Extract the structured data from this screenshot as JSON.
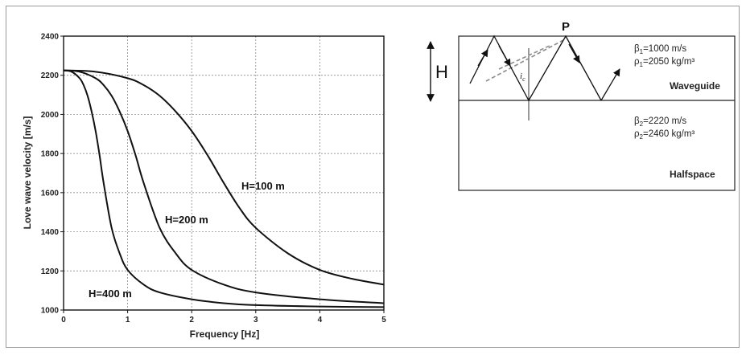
{
  "chart_data": {
    "type": "line",
    "xlabel": "Frequency [Hz]",
    "ylabel": "Love wave velocity [m/s]",
    "xlim": [
      0,
      5
    ],
    "ylim": [
      1000,
      2400
    ],
    "xticks": [
      0,
      1,
      2,
      3,
      4,
      5
    ],
    "yticks": [
      1000,
      1200,
      1400,
      1600,
      1800,
      2000,
      2200,
      2400
    ],
    "grid": true,
    "series": [
      {
        "name": "H=100 m",
        "x": [
          0,
          0.5,
          1.0,
          1.25,
          1.5,
          1.75,
          2.0,
          2.25,
          2.5,
          2.75,
          3.0,
          3.5,
          4.0,
          4.5,
          5.0
        ],
        "y": [
          2225,
          2218,
          2185,
          2150,
          2095,
          2015,
          1915,
          1790,
          1650,
          1520,
          1420,
          1290,
          1205,
          1160,
          1130
        ]
      },
      {
        "name": "H=200 m",
        "x": [
          0,
          0.25,
          0.5,
          0.625,
          0.75,
          0.875,
          1.0,
          1.125,
          1.25,
          1.5,
          1.75,
          2.0,
          2.5,
          3.0,
          4.0,
          5.0
        ],
        "y": [
          2225,
          2218,
          2185,
          2150,
          2095,
          2015,
          1915,
          1790,
          1650,
          1420,
          1290,
          1205,
          1130,
          1090,
          1055,
          1035
        ]
      },
      {
        "name": "H=400 m",
        "x": [
          0,
          0.125,
          0.25,
          0.3125,
          0.375,
          0.4375,
          0.5,
          0.5625,
          0.625,
          0.75,
          0.875,
          1.0,
          1.25,
          1.5,
          2.0,
          2.5,
          3.0,
          4.0,
          5.0
        ],
        "y": [
          2225,
          2218,
          2185,
          2150,
          2095,
          2015,
          1915,
          1790,
          1650,
          1420,
          1290,
          1205,
          1130,
          1090,
          1055,
          1035,
          1025,
          1018,
          1015
        ]
      }
    ]
  },
  "diagram": {
    "thickness_label": "H",
    "point_label": "P",
    "critical_angle_label": "i",
    "critical_angle_sub": "c",
    "waveguide": {
      "name": "Waveguide",
      "beta_symbol": "β",
      "beta_sub": "1",
      "beta_value": "=1000 m/s",
      "rho_symbol": "ρ",
      "rho_sub": "1",
      "rho_value": "=2050 kg/m³"
    },
    "halfspace": {
      "name": "Halfspace",
      "beta_symbol": "β",
      "beta_sub": "2",
      "beta_value": "=2220 m/s",
      "rho_symbol": "ρ",
      "rho_sub": "2",
      "rho_value": "=2460 kg/m³"
    }
  }
}
